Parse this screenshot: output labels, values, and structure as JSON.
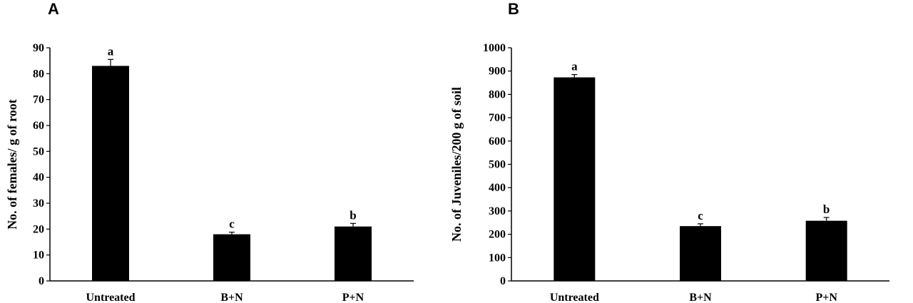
{
  "chart_data": [
    {
      "type": "bar",
      "panel": "A",
      "categories": [
        "Untreated",
        "B+N",
        "P+N"
      ],
      "values": [
        83,
        18,
        21
      ],
      "errors": [
        2.5,
        0.8,
        1.2
      ],
      "significance": [
        "a",
        "c",
        "b"
      ],
      "ylabel": "No. of females/ g of root",
      "xlabel": "",
      "ylim": [
        0,
        90
      ],
      "yticks": [
        0,
        10,
        20,
        30,
        40,
        50,
        60,
        70,
        80,
        90
      ],
      "grid": false,
      "bar_color": "#000000"
    },
    {
      "type": "bar",
      "panel": "B",
      "categories": [
        "Untreated",
        "B+N",
        "P+N"
      ],
      "values": [
        873,
        235,
        258
      ],
      "errors": [
        12,
        10,
        14
      ],
      "significance": [
        "a",
        "c",
        "b"
      ],
      "ylabel": "No. of Juveniles/200 g of soil",
      "xlabel": "",
      "ylim": [
        0,
        1000
      ],
      "yticks": [
        0,
        100,
        200,
        300,
        400,
        500,
        600,
        700,
        800,
        900,
        1000
      ],
      "grid": false,
      "bar_color": "#000000"
    }
  ]
}
